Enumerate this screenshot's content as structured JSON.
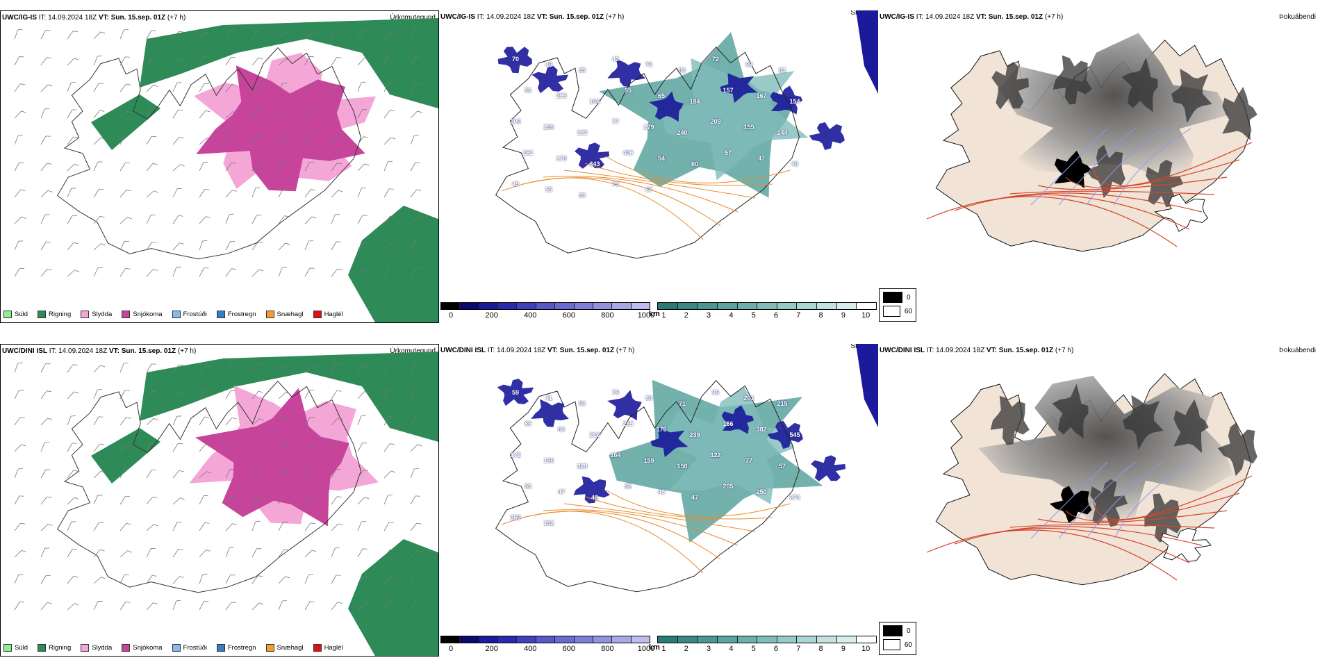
{
  "rows": [
    {
      "precip": {
        "model": "UWC/IG-IS",
        "it_label": "IT:",
        "it": "14.09.2024 18Z",
        "vt_label": "VT:",
        "vt": "Sun. 15.sep. 01Z",
        "lead": "(+7 h)",
        "title_right": "Úrkomutegund"
      },
      "visibility": {
        "model": "UWC/IG-IS",
        "it_label": "IT:",
        "it": "14.09.2024 18Z",
        "vt_label": "VT:",
        "vt": "Sun. 15.sep. 01Z",
        "lead": "(+7 h)",
        "title_right": "Skyggni",
        "labels": [
          "70",
          "49",
          "35",
          "42",
          "73",
          "80",
          "72",
          "93",
          "83",
          "96",
          "299",
          "164",
          "95",
          "65",
          "184",
          "157",
          "167",
          "154",
          "308",
          "259",
          "132",
          "77",
          "279",
          "240",
          "209",
          "155",
          "144",
          "162",
          "178",
          "343",
          "406",
          "54",
          "60",
          "57",
          "47",
          "46",
          "45",
          "55",
          "39",
          "73",
          "67"
        ]
      },
      "fog": {
        "model": "UWC/IG-IS",
        "it_label": "IT:",
        "it": "14.09.2024 18Z",
        "vt_label": "VT:",
        "vt": "Sun. 15.sep. 01Z",
        "lead": "(+7 h)",
        "title_right": "Þokuábendi"
      }
    },
    {
      "precip": {
        "model": "UWC/DINI ISL",
        "it_label": "IT:",
        "it": "14.09.2024 18Z",
        "vt_label": "VT:",
        "vt": "Sun. 15.sep. 01Z",
        "lead": "(+7 h)",
        "title_right": "Úrkomutegund"
      },
      "visibility": {
        "model": "UWC/DINI ISL",
        "it_label": "IT:",
        "it": "14.09.2024 18Z",
        "vt_label": "VT:",
        "vt": "Sun. 15.sep. 01Z",
        "lead": "(+7 h)",
        "title_right": "Skyggni",
        "labels": [
          "59",
          "41",
          "50",
          "79",
          "69",
          "71",
          "99",
          "201",
          "215",
          "89",
          "68",
          "216",
          "265",
          "176",
          "239",
          "166",
          "382",
          "545",
          "172",
          "136",
          "329",
          "164",
          "159",
          "150",
          "122",
          "77",
          "57",
          "53",
          "47",
          "46",
          "52",
          "45",
          "47",
          "205",
          "250",
          "273",
          "359",
          "152"
        ]
      },
      "fog": {
        "model": "UWC/DINI ISL",
        "it_label": "IT:",
        "it": "14.09.2024 18Z",
        "vt_label": "VT:",
        "vt": "Sun. 15.sep. 01Z",
        "lead": "(+7 h)",
        "title_right": "Þokuábendi"
      }
    }
  ],
  "precip_legend": [
    {
      "label": "Súld",
      "color": "#90ee90"
    },
    {
      "label": "Rigning",
      "color": "#2e8b57"
    },
    {
      "label": "Slydda",
      "color": "#f4a6d7"
    },
    {
      "label": "Snjókoma",
      "color": "#c6459b"
    },
    {
      "label": "Frostúði",
      "color": "#87b9f0"
    },
    {
      "label": "Frostregn",
      "color": "#3a7bc8"
    },
    {
      "label": "Snæhagl",
      "color": "#f0a030"
    },
    {
      "label": "Haglél",
      "color": "#e01010"
    }
  ],
  "ceiling_colorbar": {
    "unit": "m",
    "ticks": [
      "0",
      "200",
      "400",
      "600",
      "800",
      "1000"
    ],
    "colors": [
      "#000000",
      "#0a0a6e",
      "#1a1a9a",
      "#2a2ab0",
      "#4040c0",
      "#5858c8",
      "#6a6ad0",
      "#7e7ed8",
      "#9292e0",
      "#a8a8e8",
      "#bcbcf0"
    ]
  },
  "vis_colorbar": {
    "unit": "km",
    "ticks": [
      "1",
      "2",
      "3",
      "4",
      "5",
      "6",
      "7",
      "8",
      "9",
      "10"
    ],
    "colors": [
      "#2a7a76",
      "#3a8884",
      "#4a9692",
      "#5aa39f",
      "#6cb0ac",
      "#80bdb9",
      "#96cac6",
      "#acd6d3",
      "#c2e2e0",
      "#d8eeec",
      "#ffffff"
    ]
  },
  "fog_legend": {
    "items": [
      {
        "label": "0",
        "color": "#000000"
      },
      {
        "label": "60",
        "color": "#ffffff"
      }
    ]
  }
}
